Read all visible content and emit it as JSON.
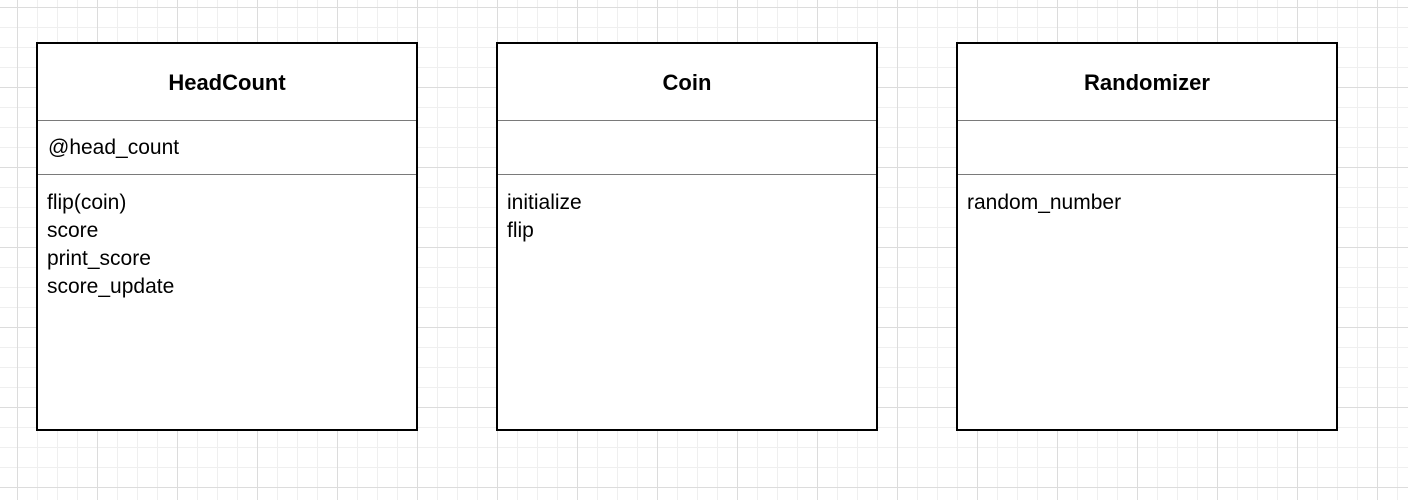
{
  "classes": [
    {
      "name": "HeadCount",
      "attributes": [
        "@head_count"
      ],
      "methods": [
        "flip(coin)",
        "score",
        "print_score",
        "score_update"
      ]
    },
    {
      "name": "Coin",
      "attributes": [],
      "methods": [
        "initialize",
        "flip"
      ]
    },
    {
      "name": "Randomizer",
      "attributes": [],
      "methods": [
        "random_number"
      ]
    }
  ]
}
